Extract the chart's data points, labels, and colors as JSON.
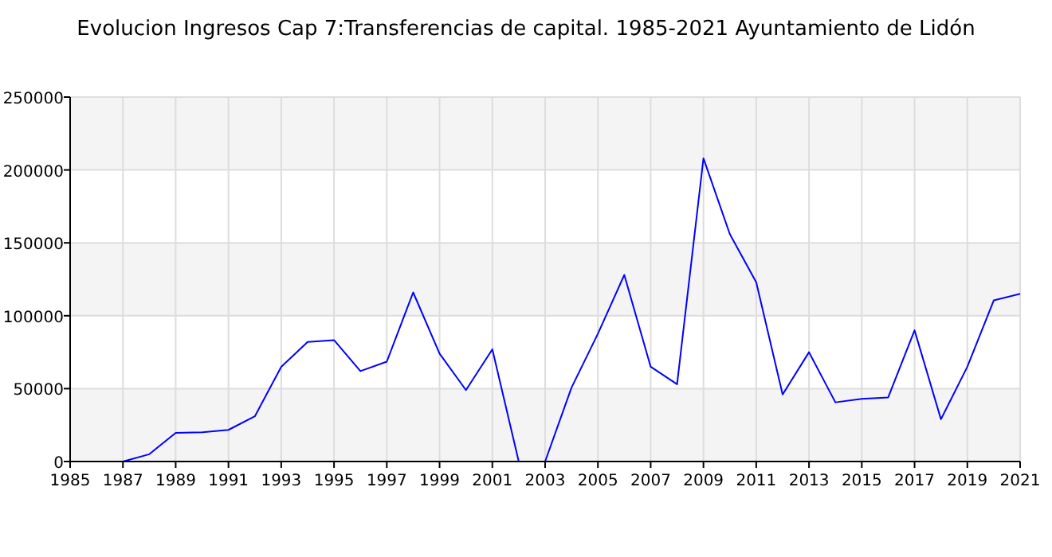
{
  "chart_data": {
    "type": "line",
    "title": "Evolucion Ingresos Cap 7:Transferencias de capital. 1985-2021 Ayuntamiento de Lidón",
    "x": [
      1987,
      1988,
      1989,
      1990,
      1991,
      1992,
      1993,
      1994,
      1995,
      1996,
      1997,
      1998,
      1999,
      2000,
      2001,
      2002,
      2003,
      2004,
      2005,
      2006,
      2007,
      2008,
      2009,
      2010,
      2011,
      2012,
      2013,
      2014,
      2015,
      2016,
      2017,
      2018,
      2019,
      2020,
      2021
    ],
    "series": [
      {
        "color": "#0000ff",
        "values": [
          0,
          5000,
          19600,
          20000,
          21700,
          31000,
          65000,
          82000,
          83300,
          62000,
          68500,
          116000,
          74000,
          49000,
          77000,
          0,
          0,
          50700,
          87700,
          128000,
          65000,
          53000,
          208000,
          156000,
          123000,
          46000,
          75000,
          40600,
          43000,
          44000,
          90000,
          29000,
          65000,
          110500,
          115000
        ]
      }
    ],
    "xlim": [
      1985,
      2021
    ],
    "xticks": [
      1985,
      1987,
      1989,
      1991,
      1993,
      1995,
      1997,
      1999,
      2001,
      2003,
      2005,
      2007,
      2009,
      2011,
      2013,
      2015,
      2017,
      2019,
      2021
    ],
    "ylim": [
      0,
      250000
    ],
    "yticks": [
      0,
      50000,
      100000,
      150000,
      200000,
      250000
    ],
    "grid": true,
    "marker": "none",
    "line_style": "solid"
  }
}
